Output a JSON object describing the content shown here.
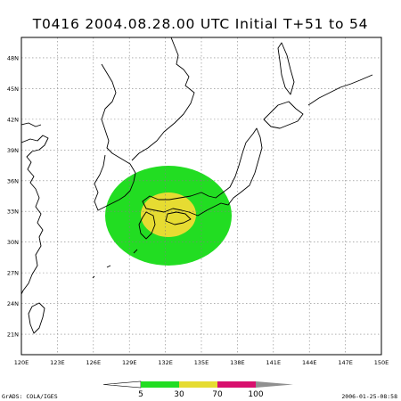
{
  "title": "T0416  2004.08.28.00  UTC  Initial  T+51  to  54",
  "lat_labels": [
    "21N",
    "24N",
    "27N",
    "30N",
    "33N",
    "36N",
    "39N",
    "42N",
    "45N",
    "48N"
  ],
  "lon_labels": [
    "120E",
    "123E",
    "126E",
    "129E",
    "132E",
    "135E",
    "138E",
    "141E",
    "144E",
    "147E",
    "150E"
  ],
  "legend": {
    "colors": [
      "#22dd22",
      "#e6dc32",
      "#d8106e",
      "#909090"
    ],
    "labels": [
      "5",
      "30",
      "70",
      "100"
    ]
  },
  "footer_left": "GrADS: COLA/IGES",
  "footer_right": "2006-01-25-08:58",
  "probability_areas": [
    {
      "level": "5",
      "color": "#22dd22",
      "center": {
        "lon": 132.2,
        "lat": 33.3
      }
    },
    {
      "level": "30",
      "color": "#e6dc32",
      "center": {
        "lon": 132.3,
        "lat": 33.3
      }
    }
  ]
}
